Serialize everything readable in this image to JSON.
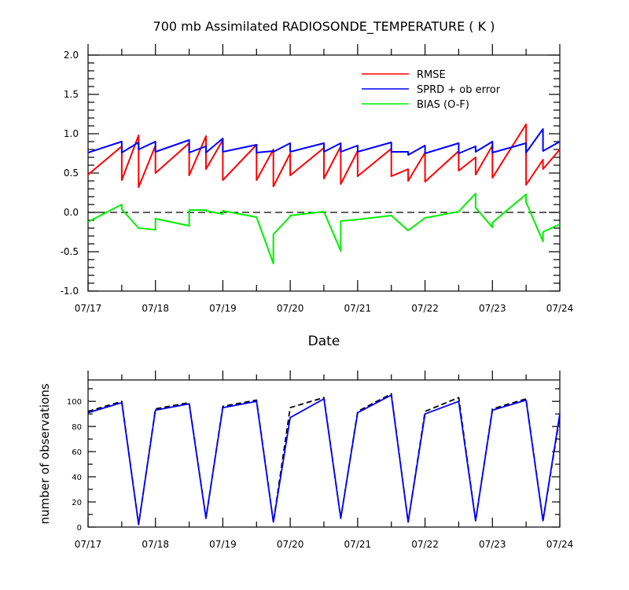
{
  "chart_data": [
    {
      "type": "line",
      "title": "700 mb Assimilated RADIOSONDE_TEMPERATURE ( K )",
      "xlabel": "Date",
      "ylabel": "",
      "ylim": [
        -1.0,
        2.0
      ],
      "xlim": [
        0,
        7
      ],
      "yticks": [
        "2.0",
        "1.5",
        "1.0",
        "0.5",
        "0.0",
        "-0.5",
        "-1.0"
      ],
      "x_tick_labels": [
        "07/17",
        "07/18",
        "07/19",
        "07/20",
        "07/21",
        "07/22",
        "07/23",
        "07/24"
      ],
      "zero_line": true,
      "legend_position": "top-right",
      "series": [
        {
          "name": "RMSE",
          "color": "#ff0000",
          "x": [
            0,
            0.5,
            0.5,
            0.75,
            0.75,
            1,
            1,
            1.5,
            1.5,
            1.75,
            1.75,
            2,
            2,
            2.5,
            2.5,
            2.75,
            2.75,
            3,
            3,
            3.5,
            3.5,
            3.75,
            3.75,
            4,
            4,
            4.5,
            4.5,
            4.75,
            4.75,
            5,
            5,
            5.5,
            5.5,
            5.75,
            5.75,
            6,
            6,
            6.5,
            6.5,
            6.75,
            6.75,
            7
          ],
          "values": [
            0.48,
            0.84,
            0.41,
            0.98,
            0.32,
            0.85,
            0.5,
            0.88,
            0.47,
            0.97,
            0.55,
            0.92,
            0.41,
            0.86,
            0.41,
            0.8,
            0.33,
            0.75,
            0.47,
            0.82,
            0.43,
            0.84,
            0.36,
            0.78,
            0.46,
            0.81,
            0.46,
            0.55,
            0.4,
            0.76,
            0.39,
            0.78,
            0.53,
            0.7,
            0.48,
            0.85,
            0.44,
            1.12,
            0.35,
            0.67,
            0.55,
            0.8
          ]
        },
        {
          "name": "SPRD + ob error",
          "color": "#0000ff",
          "x": [
            0,
            0.5,
            0.5,
            0.75,
            0.75,
            1,
            1,
            1.5,
            1.5,
            1.75,
            1.75,
            2,
            2,
            2.5,
            2.5,
            2.75,
            2.75,
            3,
            3,
            3.5,
            3.5,
            3.75,
            3.75,
            4,
            4,
            4.5,
            4.5,
            4.75,
            4.75,
            5,
            5,
            5.5,
            5.5,
            5.75,
            5.75,
            6,
            6,
            6.5,
            6.5,
            6.75,
            6.75,
            7
          ],
          "values": [
            0.76,
            0.9,
            0.76,
            0.89,
            0.8,
            0.9,
            0.77,
            0.92,
            0.76,
            0.84,
            0.76,
            0.94,
            0.77,
            0.86,
            0.76,
            0.78,
            0.77,
            0.88,
            0.77,
            0.88,
            0.77,
            0.88,
            0.77,
            0.85,
            0.77,
            0.89,
            0.77,
            0.77,
            0.73,
            0.85,
            0.75,
            0.88,
            0.75,
            0.84,
            0.77,
            0.9,
            0.76,
            0.88,
            0.76,
            1.06,
            0.78,
            0.9
          ]
        },
        {
          "name": "BIAS (O-F)",
          "color": "#00ee00",
          "x": [
            0,
            0.5,
            0.5,
            0.75,
            0.75,
            1,
            1,
            1.5,
            1.5,
            1.75,
            1.75,
            2,
            2,
            2.5,
            2.5,
            2.75,
            2.75,
            3,
            3,
            3.5,
            3.5,
            3.75,
            3.75,
            4,
            4,
            4.5,
            4.5,
            4.75,
            4.75,
            5,
            5,
            5.5,
            5.5,
            5.75,
            5.75,
            6,
            6,
            6.5,
            6.5,
            6.75,
            6.75,
            7
          ],
          "values": [
            -0.12,
            0.1,
            0.04,
            -0.2,
            -0.2,
            -0.22,
            -0.08,
            -0.17,
            0.03,
            0.03,
            0.02,
            -0.02,
            0.02,
            -0.06,
            -0.06,
            -0.65,
            -0.28,
            -0.05,
            -0.04,
            0.01,
            0.01,
            -0.49,
            -0.11,
            -0.09,
            -0.09,
            -0.04,
            -0.04,
            -0.23,
            -0.23,
            -0.07,
            -0.07,
            0.01,
            0.01,
            0.24,
            0.06,
            -0.19,
            -0.13,
            0.23,
            0.13,
            -0.37,
            -0.25,
            -0.15
          ]
        }
      ]
    },
    {
      "type": "line",
      "title": "",
      "xlabel": "",
      "ylabel": "number of observations",
      "ylim": [
        0,
        117
      ],
      "xlim": [
        0,
        7
      ],
      "yticks": [
        "100",
        "80",
        "60",
        "40",
        "20",
        "0"
      ],
      "x_tick_labels": [
        "07/17",
        "07/18",
        "07/19",
        "07/20",
        "07/21",
        "07/22",
        "07/23",
        "07/24"
      ],
      "series": [
        {
          "style": "dashed",
          "color": "#000000",
          "x": [
            0,
            0.5,
            0.75,
            1,
            1.5,
            1.75,
            2,
            2.5,
            2.75,
            3,
            3.5,
            3.75,
            4,
            4.5,
            4.75,
            5,
            5.5,
            5.75,
            6,
            6.5,
            6.75,
            7
          ],
          "values": [
            92,
            100,
            2,
            94,
            99,
            7,
            96,
            101,
            4,
            95,
            103,
            7,
            92,
            106,
            4,
            92,
            103,
            5,
            94,
            102,
            5,
            88
          ]
        },
        {
          "style": "solid",
          "color": "#0000ff",
          "x": [
            0,
            0.5,
            0.75,
            1,
            1.5,
            1.75,
            2,
            2.5,
            2.75,
            3,
            3.5,
            3.75,
            4,
            4.5,
            4.75,
            5,
            5.5,
            5.75,
            6,
            6.5,
            6.75,
            7
          ],
          "values": [
            91,
            99,
            2,
            93,
            98,
            7,
            95,
            100,
            4,
            87,
            102,
            7,
            91,
            105,
            4,
            90,
            100,
            5,
            93,
            101,
            5,
            90
          ]
        }
      ]
    }
  ]
}
